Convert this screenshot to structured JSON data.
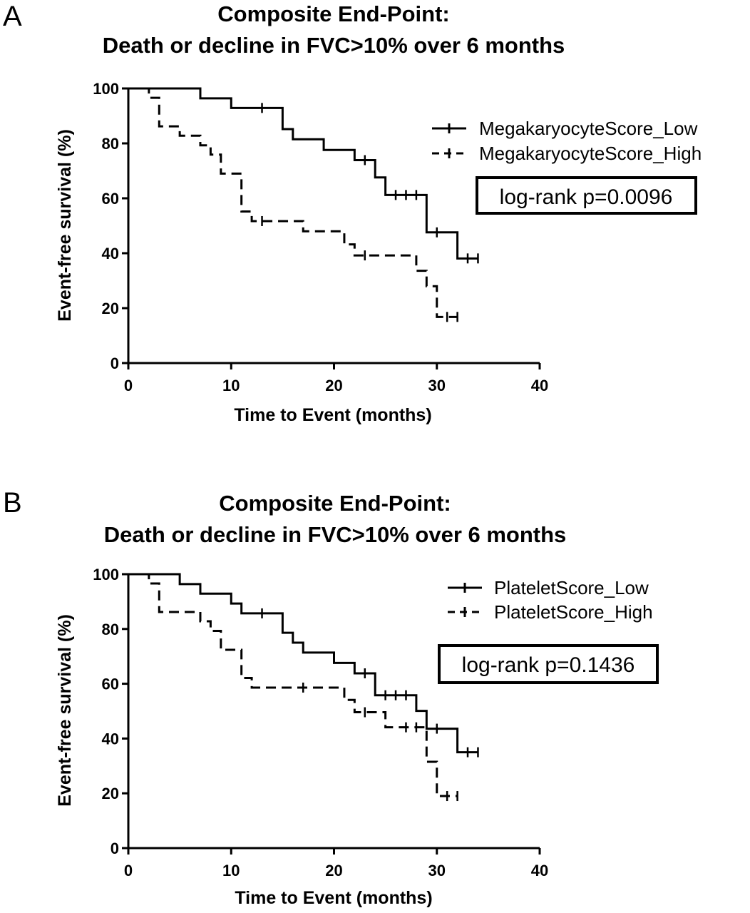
{
  "chart_data": [
    {
      "type": "line",
      "panel_label": "A",
      "title": "Composite End-Point:",
      "subtitle": "Death or decline in FVC>10% over 6 months",
      "xlabel": "Time to Event (months)",
      "ylabel": "Event-free survival (%)",
      "xlim": [
        0,
        40
      ],
      "ylim": [
        0,
        100
      ],
      "xticks": [
        "0",
        "10",
        "20",
        "30",
        "40"
      ],
      "yticks": [
        "0",
        "20",
        "40",
        "60",
        "80",
        "100"
      ],
      "grid": false,
      "legend_position": "top-right",
      "annotation": "log-rank p=0.0096",
      "series": [
        {
          "name": "MegakaryocyteScore_Low",
          "style": "solid",
          "color": "#000000",
          "steps": [
            [
              0,
              100
            ],
            [
              7,
              96.4
            ],
            [
              10,
              92.9
            ],
            [
              15,
              85.2
            ],
            [
              16,
              81.5
            ],
            [
              19,
              77.6
            ],
            [
              22,
              73.9
            ],
            [
              24,
              67.6
            ],
            [
              25,
              61.2
            ],
            [
              29,
              47.6
            ],
            [
              32,
              38.1
            ],
            [
              34,
              38.1
            ]
          ],
          "censored": [
            [
              13,
              92.9
            ],
            [
              23,
              73.9
            ],
            [
              26,
              61.2
            ],
            [
              27,
              61.2
            ],
            [
              28,
              61.2
            ],
            [
              30,
              47.6
            ],
            [
              33,
              38.1
            ],
            [
              34,
              38.1
            ]
          ]
        },
        {
          "name": "MegakaryocyteScore_High",
          "style": "dashed",
          "color": "#000000",
          "steps": [
            [
              0,
              100
            ],
            [
              2,
              96.6
            ],
            [
              3,
              86.2
            ],
            [
              5,
              82.8
            ],
            [
              7,
              79.3
            ],
            [
              8,
              75.9
            ],
            [
              9,
              69.0
            ],
            [
              11,
              55.2
            ],
            [
              12,
              51.7
            ],
            [
              17,
              48.0
            ],
            [
              21,
              43.2
            ],
            [
              22,
              39.2
            ],
            [
              28,
              33.6
            ],
            [
              29,
              28.0
            ],
            [
              30,
              16.8
            ],
            [
              32,
              16.8
            ]
          ],
          "censored": [
            [
              13,
              51.7
            ],
            [
              23,
              39.2
            ],
            [
              31,
              16.8
            ],
            [
              32,
              16.8
            ]
          ]
        }
      ]
    },
    {
      "type": "line",
      "panel_label": "B",
      "title": "Composite End-Point:",
      "subtitle": "Death or decline in FVC>10% over 6 months",
      "xlabel": "Time to Event (months)",
      "ylabel": "Event-free survival (%)",
      "xlim": [
        0,
        40
      ],
      "ylim": [
        0,
        100
      ],
      "xticks": [
        "0",
        "10",
        "20",
        "30",
        "40"
      ],
      "yticks": [
        "0",
        "20",
        "40",
        "60",
        "80",
        "100"
      ],
      "grid": false,
      "legend_position": "top-right",
      "annotation": "log-rank p=0.1436",
      "series": [
        {
          "name": "PlateletScore_Low",
          "style": "solid",
          "color": "#000000",
          "steps": [
            [
              0,
              100
            ],
            [
              5,
              96.4
            ],
            [
              7,
              92.9
            ],
            [
              10,
              89.3
            ],
            [
              11,
              85.7
            ],
            [
              15,
              78.6
            ],
            [
              16,
              75.0
            ],
            [
              17,
              71.4
            ],
            [
              20,
              67.6
            ],
            [
              22,
              63.8
            ],
            [
              24,
              55.8
            ],
            [
              28,
              50.1
            ],
            [
              29,
              43.6
            ],
            [
              32,
              35.0
            ],
            [
              34,
              35.0
            ]
          ],
          "censored": [
            [
              13,
              85.7
            ],
            [
              23,
              63.8
            ],
            [
              25,
              55.8
            ],
            [
              26,
              55.8
            ],
            [
              27,
              55.8
            ],
            [
              30,
              43.6
            ],
            [
              33,
              35.0
            ],
            [
              34,
              35.0
            ]
          ]
        },
        {
          "name": "PlateletScore_High",
          "style": "dashed",
          "color": "#000000",
          "steps": [
            [
              0,
              100
            ],
            [
              2,
              96.6
            ],
            [
              3,
              86.2
            ],
            [
              7,
              82.8
            ],
            [
              8,
              79.3
            ],
            [
              9,
              72.4
            ],
            [
              11,
              62.1
            ],
            [
              12,
              58.6
            ],
            [
              21,
              54.1
            ],
            [
              22,
              49.6
            ],
            [
              25,
              44.1
            ],
            [
              29,
              31.5
            ],
            [
              30,
              19.0
            ],
            [
              32,
              19.0
            ]
          ],
          "censored": [
            [
              17,
              58.6
            ],
            [
              23,
              49.6
            ],
            [
              27,
              44.1
            ],
            [
              28,
              44.1
            ],
            [
              31,
              19.0
            ],
            [
              32,
              19.0
            ]
          ]
        }
      ]
    }
  ]
}
